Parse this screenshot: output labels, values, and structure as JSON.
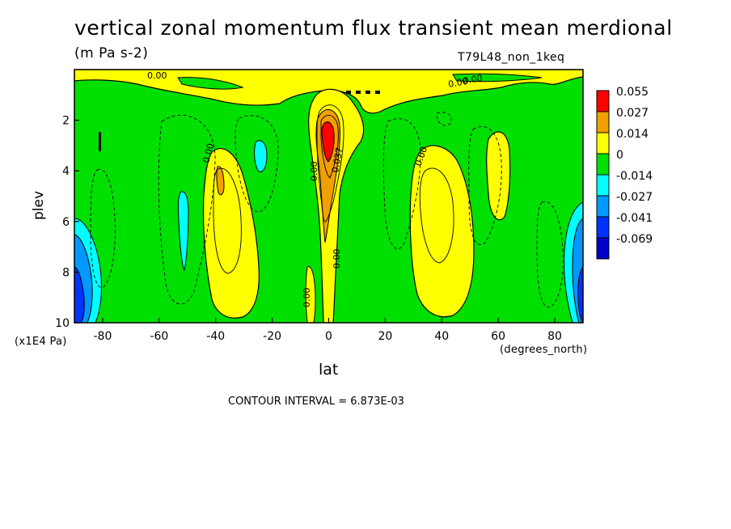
{
  "chart_data": {
    "type": "heatmap",
    "title": "vertical zonal momentum flux transient mean merdional",
    "units": "(m Pa s-2)",
    "dataset": "T79L48_non_1keq",
    "xlabel": "lat",
    "x_units": "(degrees_north)",
    "ylabel": "plev",
    "y_units": "(x1E4 Pa)",
    "xlim": [
      -90,
      90
    ],
    "ylim": [
      10,
      0
    ],
    "x_ticks": [
      -80,
      -60,
      -40,
      -20,
      0,
      20,
      40,
      60,
      80
    ],
    "x_tick_labels": [
      "-80",
      "-60",
      "-40",
      "-20",
      "0",
      "20",
      "40",
      "60",
      "80"
    ],
    "y_ticks": [
      2,
      4,
      6,
      8,
      10
    ],
    "y_tick_labels": [
      "2",
      "4",
      "6",
      "8",
      "10"
    ],
    "contour_interval": "CONTOUR INTERVAL = 6.873E-03",
    "legend": {
      "labels": [
        "0.055",
        "0.027",
        "0.014",
        "0",
        "-0.014",
        "-0.027",
        "-0.041",
        "-0.069"
      ],
      "colors": [
        "#ff0000",
        "#f2a000",
        "#ffff00",
        "#00e000",
        "#00ffff",
        "#0099ff",
        "#0033ff",
        "#0000c8"
      ]
    },
    "contour_labels": [
      "0.00",
      "0.00",
      "0.00",
      "0.00",
      "0.037",
      "0.00",
      "0.00",
      "0.00",
      "0.00"
    ],
    "background_color": "#00e000",
    "features": [
      {
        "name": "equatorial positive max",
        "lat": -1,
        "plev": 3.0,
        "value": 0.055
      },
      {
        "name": "equatorial positive column",
        "lat": 0,
        "plev_range": [
          1.5,
          9.8
        ],
        "value": 0.014
      },
      {
        "name": "southern midlatitude positive band",
        "lat": -40,
        "plev_range": [
          4,
          9.5
        ],
        "value": 0.014
      },
      {
        "name": "southern midlatitude orange patch",
        "lat": -38,
        "plev": 4.5,
        "value": 0.027
      },
      {
        "name": "northern midlatitude positive band",
        "lat": 40,
        "plev_range": [
          3.5,
          9.5
        ],
        "value": 0.014
      },
      {
        "name": "north polar positive band",
        "lat": 64,
        "plev_range": [
          2.5,
          7
        ],
        "value": 0.014
      },
      {
        "name": "southern cyan streak",
        "lat": -25,
        "plev": 3.5,
        "value": -0.014
      },
      {
        "name": "southern cyan streak 2",
        "lat": -51,
        "plev": 6,
        "value": -0.014
      },
      {
        "name": "south polar negative",
        "lat": -88,
        "plev_range": [
          5.5,
          10
        ],
        "value": -0.041
      },
      {
        "name": "north polar negative",
        "lat": 87,
        "plev_range": [
          5,
          10
        ],
        "value": -0.041
      },
      {
        "name": "upper positive layer",
        "lat_range": [
          -90,
          90
        ],
        "plev_range": [
          0.3,
          1.5
        ],
        "value": 0.014
      }
    ]
  }
}
